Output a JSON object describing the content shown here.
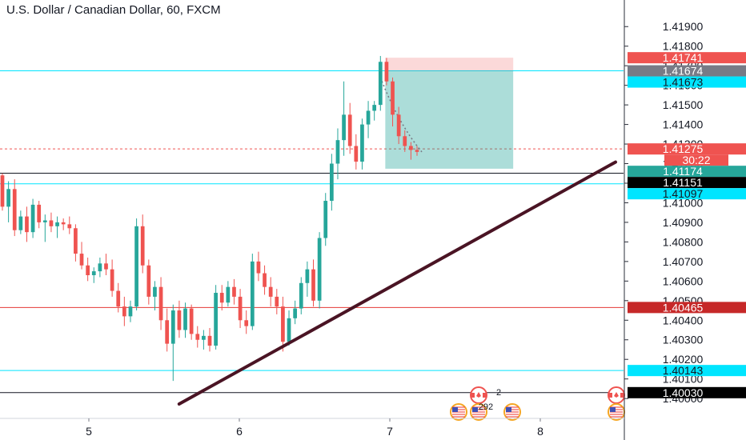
{
  "chart_data": {
    "type": "candlestick",
    "title": "U.S. Dollar / Canadian Dollar, 60, FXCM",
    "x_ticks": [
      "5",
      "6",
      "7",
      "8"
    ],
    "y_ticks": [
      "1.41900",
      "1.41800",
      "1.41700",
      "1.41600",
      "1.41500",
      "1.41400",
      "1.41300",
      "1.41200",
      "1.41100",
      "1.41000",
      "1.40900",
      "1.40800",
      "1.40700",
      "1.40600",
      "1.40500",
      "1.40400",
      "1.40300",
      "1.40200",
      "1.40100",
      "1.40000"
    ],
    "ylim": [
      1.39972,
      1.41995
    ],
    "candles": [
      [
        1.4114,
        1.4115,
        1.4096,
        1.4098
      ],
      [
        1.4098,
        1.4111,
        1.409,
        1.4107
      ],
      [
        1.4107,
        1.4112,
        1.4083,
        1.4086
      ],
      [
        1.4086,
        1.4096,
        1.4084,
        1.4093
      ],
      [
        1.4093,
        1.4098,
        1.408,
        1.4085
      ],
      [
        1.4085,
        1.4102,
        1.4082,
        1.4099
      ],
      [
        1.4099,
        1.4101,
        1.4087,
        1.409
      ],
      [
        1.409,
        1.4094,
        1.408,
        1.4091
      ],
      [
        1.4091,
        1.4095,
        1.4085,
        1.4088
      ],
      [
        1.4088,
        1.4093,
        1.4082,
        1.409
      ],
      [
        1.409,
        1.4092,
        1.4086,
        1.4089
      ],
      [
        1.4089,
        1.4093,
        1.4084,
        1.4087
      ],
      [
        1.4087,
        1.4089,
        1.407,
        1.4074
      ],
      [
        1.4074,
        1.408,
        1.4066,
        1.4068
      ],
      [
        1.4068,
        1.4072,
        1.406,
        1.4063
      ],
      [
        1.4063,
        1.4067,
        1.4059,
        1.4065
      ],
      [
        1.4065,
        1.4072,
        1.4062,
        1.4069
      ],
      [
        1.4069,
        1.4074,
        1.4063,
        1.4066
      ],
      [
        1.4066,
        1.4071,
        1.4052,
        1.4055
      ],
      [
        1.4055,
        1.4059,
        1.4044,
        1.4047
      ],
      [
        1.4047,
        1.4052,
        1.4037,
        1.4042
      ],
      [
        1.4042,
        1.405,
        1.4039,
        1.4047
      ],
      [
        1.4047,
        1.4092,
        1.4045,
        1.4088
      ],
      [
        1.4088,
        1.4094,
        1.4064,
        1.4068
      ],
      [
        1.4068,
        1.4071,
        1.4048,
        1.4052
      ],
      [
        1.4052,
        1.406,
        1.4045,
        1.4057
      ],
      [
        1.4057,
        1.4062,
        1.4035,
        1.404
      ],
      [
        1.404,
        1.4046,
        1.4024,
        1.4028
      ],
      [
        1.4028,
        1.4048,
        1.4009,
        1.4045
      ],
      [
        1.4045,
        1.405,
        1.4031,
        1.4035
      ],
      [
        1.4035,
        1.4049,
        1.4031,
        1.4046
      ],
      [
        1.4046,
        1.4048,
        1.403,
        1.4033
      ],
      [
        1.4033,
        1.4037,
        1.4026,
        1.403
      ],
      [
        1.403,
        1.4035,
        1.4025,
        1.4032
      ],
      [
        1.4032,
        1.4036,
        1.4024,
        1.4027
      ],
      [
        1.4027,
        1.4058,
        1.4025,
        1.4054
      ],
      [
        1.4054,
        1.4058,
        1.4045,
        1.4049
      ],
      [
        1.4049,
        1.406,
        1.4047,
        1.4057
      ],
      [
        1.4057,
        1.4061,
        1.4048,
        1.4052
      ],
      [
        1.4052,
        1.4056,
        1.4036,
        1.404
      ],
      [
        1.404,
        1.4045,
        1.4033,
        1.4037
      ],
      [
        1.4037,
        1.4074,
        1.4035,
        1.407
      ],
      [
        1.407,
        1.4075,
        1.406,
        1.4064
      ],
      [
        1.4064,
        1.4068,
        1.4053,
        1.4057
      ],
      [
        1.4057,
        1.4062,
        1.4047,
        1.4052
      ],
      [
        1.4052,
        1.4056,
        1.4043,
        1.4047
      ],
      [
        1.4047,
        1.4052,
        1.4024,
        1.4029
      ],
      [
        1.4029,
        1.4045,
        1.4027,
        1.4041
      ],
      [
        1.4041,
        1.405,
        1.4038,
        1.4046
      ],
      [
        1.4046,
        1.4062,
        1.4043,
        1.4059
      ],
      [
        1.4059,
        1.407,
        1.4052,
        1.4066
      ],
      [
        1.4066,
        1.4071,
        1.4047,
        1.405
      ],
      [
        1.405,
        1.4085,
        1.4046,
        1.4082
      ],
      [
        1.4082,
        1.4105,
        1.4078,
        1.4101
      ],
      [
        1.4101,
        1.4125,
        1.4096,
        1.412
      ],
      [
        1.412,
        1.4138,
        1.4112,
        1.4132
      ],
      [
        1.4132,
        1.4162,
        1.4124,
        1.4145
      ],
      [
        1.4145,
        1.4151,
        1.4125,
        1.4129
      ],
      [
        1.4129,
        1.4135,
        1.4117,
        1.4121
      ],
      [
        1.4121,
        1.4143,
        1.4117,
        1.414
      ],
      [
        1.414,
        1.4152,
        1.4133,
        1.4147
      ],
      [
        1.4147,
        1.4152,
        1.4142,
        1.415
      ],
      [
        1.415,
        1.4175,
        1.4147,
        1.4172
      ],
      [
        1.4172,
        1.4174,
        1.416,
        1.4162
      ],
      [
        1.4162,
        1.4164,
        1.4139,
        1.4145
      ],
      [
        1.4145,
        1.4149,
        1.413,
        1.4134
      ],
      [
        1.4134,
        1.4137,
        1.4126,
        1.4129
      ],
      [
        1.4129,
        1.4131,
        1.4122,
        1.4127
      ],
      [
        1.4127,
        1.4129,
        1.4124,
        1.4126
      ]
    ],
    "horizontal_lines": [
      {
        "price": 1.41674,
        "color": "#00e5ff"
      },
      {
        "price": 1.41275,
        "color": "#ef5350",
        "dashed": true
      },
      {
        "price": 1.41151,
        "color": "#131722"
      },
      {
        "price": 1.41097,
        "color": "#00e5ff"
      },
      {
        "price": 1.40465,
        "color": "#e53935"
      },
      {
        "price": 1.40143,
        "color": "#00e5ff"
      },
      {
        "price": 1.4003,
        "color": "#131722"
      }
    ],
    "trendline": {
      "p1": {
        "x_day": 5.6,
        "price": 1.39972
      },
      "p2": {
        "x_day": 8.5,
        "price": 1.41208
      },
      "color": "#4a1424"
    },
    "position": {
      "entry": 1.41674,
      "stop": 1.41741,
      "target": 1.41174,
      "start_day": 6.97,
      "end_day": 7.82
    },
    "price_labels": [
      {
        "text": "1.41741",
        "price": 1.41741,
        "bg": "#ef5350",
        "fg": "#ffffff"
      },
      {
        "text": "1.41674",
        "price": 1.41674,
        "bg": "#787b86",
        "fg": "#ffffff"
      },
      {
        "text": "1.41673",
        "price": 1.41673,
        "bg": "#00e5ff",
        "fg": "#131722"
      },
      {
        "text": "1.41275",
        "price": 1.41275,
        "bg": "#ef5350",
        "fg": "#ffffff"
      },
      {
        "text": "30:22",
        "price": 1.41275,
        "bg": "#ef5350",
        "fg": "#ffffff",
        "sub": true
      },
      {
        "text": "1.41174",
        "price": 1.41174,
        "bg": "#26a69a",
        "fg": "#ffffff"
      },
      {
        "text": "1.41151",
        "price": 1.41151,
        "bg": "#000000",
        "fg": "#ffffff"
      },
      {
        "text": "1.41097",
        "price": 1.41097,
        "bg": "#00e5ff",
        "fg": "#131722"
      },
      {
        "text": "1.40465",
        "price": 1.40465,
        "bg": "#c62828",
        "fg": "#ffffff"
      },
      {
        "text": "1.40143",
        "price": 1.40143,
        "bg": "#00e5ff",
        "fg": "#131722"
      },
      {
        "text": "1.40030",
        "price": 1.4003,
        "bg": "#000000",
        "fg": "#ffffff"
      }
    ],
    "events": [
      {
        "label": "2"
      },
      {
        "label": "292"
      }
    ],
    "colors": {
      "up": "#26a69a",
      "down": "#ef5350",
      "axis_text": "#131722",
      "axis_line": "#2a2e39"
    }
  }
}
